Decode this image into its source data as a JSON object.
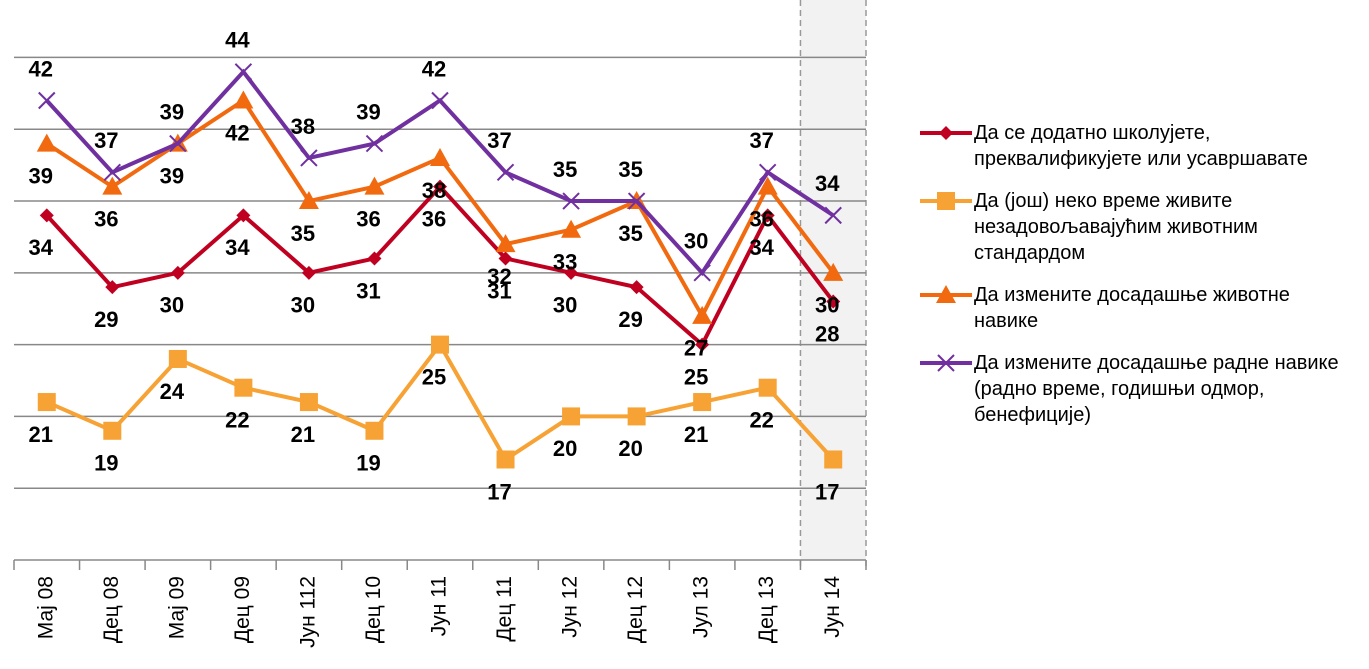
{
  "chart_data": {
    "type": "line",
    "categories": [
      "Мај 08",
      "Дец 08",
      "Мај 09",
      "Дец 09",
      "Јун 112",
      "Дец 10",
      "Јун 11",
      "Дец 11",
      "Јун 12",
      "Дец 12",
      "Јул 13",
      "Дец 13",
      "Јун 14"
    ],
    "series": [
      {
        "name": "Да се додатно школујете, преквалификујете или усавршавате",
        "color": "#c00020",
        "marker": "diamond",
        "values": [
          34,
          29,
          30,
          34,
          30,
          31,
          36,
          31,
          30,
          29,
          25,
          34,
          28
        ]
      },
      {
        "name": "Да (још) неко време живите незадовољавајућим животним стандардом",
        "color": "#f7a234",
        "marker": "square",
        "values": [
          21,
          19,
          24,
          22,
          21,
          19,
          25,
          17,
          20,
          20,
          21,
          22,
          17
        ]
      },
      {
        "name": "Да измените досадашње животне навике",
        "color": "#f26a0f",
        "marker": "triangle",
        "values": [
          39,
          36,
          39,
          42,
          35,
          36,
          38,
          32,
          33,
          35,
          27,
          36,
          30
        ]
      },
      {
        "name": "Да измените досадашње радне навике (радно време, годишњи одмор, бенефиције)",
        "color": "#7030a0",
        "marker": "x",
        "values": [
          42,
          37,
          39,
          44,
          38,
          39,
          42,
          37,
          35,
          35,
          30,
          37,
          34
        ]
      }
    ],
    "ylim": [
      10,
      49
    ],
    "yticks": [
      15,
      20,
      25,
      30,
      35,
      40,
      45
    ],
    "grid": true,
    "legend": "right"
  }
}
